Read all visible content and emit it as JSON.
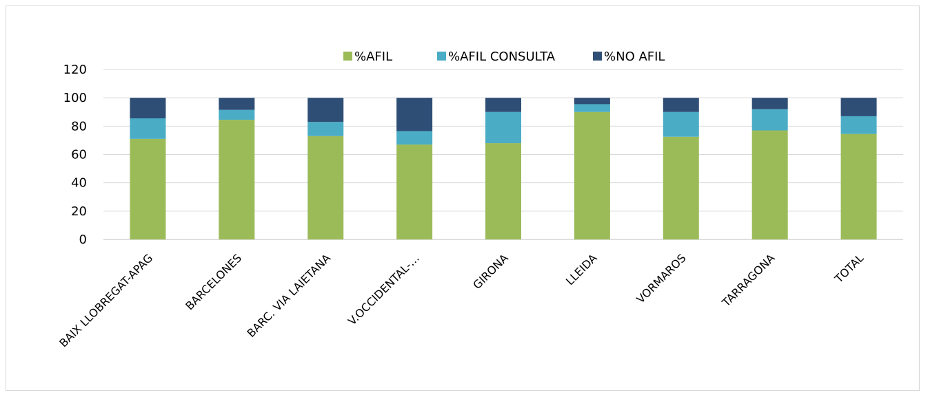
{
  "chart_data": {
    "type": "bar",
    "stacked": true,
    "categories": [
      "BAIX LLOBREGAT-APAG",
      "BARCELONES",
      "BARC. VIA LAIETANA",
      "V.OCCIDENTAL-…",
      "GIRONA",
      "LLEIDA",
      "VORMAROS",
      "TARRAGONA",
      "TOTAL"
    ],
    "series": [
      {
        "name": "%AFIL",
        "color": "#9bbb59",
        "values": [
          71,
          84.5,
          73,
          67,
          68,
          90,
          72.5,
          77,
          74.5
        ]
      },
      {
        "name": "%AFIL CONSULTA",
        "color": "#4bacc6",
        "values": [
          14.5,
          7,
          10,
          9.5,
          22,
          5.5,
          17.5,
          15,
          12.5
        ]
      },
      {
        "name": "%NO AFIL",
        "color": "#2e4e75",
        "values": [
          14.5,
          8.5,
          17,
          23.5,
          10,
          4.5,
          10,
          8,
          13
        ]
      }
    ],
    "yticks": [
      "0",
      "20",
      "40",
      "60",
      "80",
      "100",
      "120"
    ],
    "ylim": [
      0,
      120
    ],
    "grid": true,
    "legend_position": "top-center"
  }
}
